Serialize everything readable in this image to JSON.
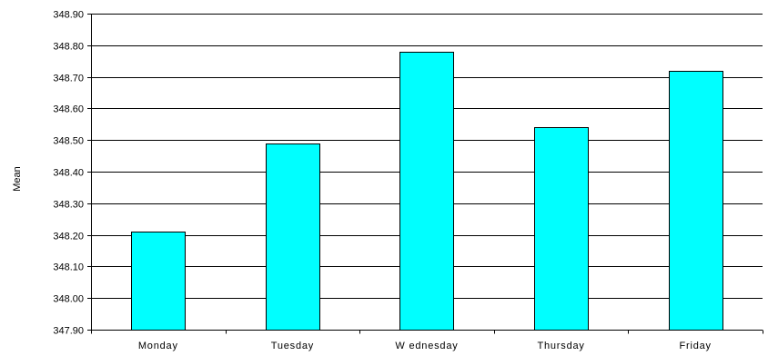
{
  "chart_data": {
    "type": "bar",
    "categories": [
      "Monday",
      "Tuesday",
      "W ednesday",
      "Thursday",
      "Friday"
    ],
    "values": [
      348.21,
      348.49,
      348.78,
      348.54,
      348.72
    ],
    "ylabel": "Mean",
    "xlabel": "",
    "ylim": [
      347.9,
      348.9
    ],
    "yticks": [
      "347.90",
      "348.00",
      "348.10",
      "348.20",
      "348.30",
      "348.40",
      "348.50",
      "348.60",
      "348.70",
      "348.80",
      "348.90"
    ],
    "grid": true,
    "legend": "none",
    "bar_color": "#00FFFF",
    "bar_edge_color": "#000000"
  }
}
